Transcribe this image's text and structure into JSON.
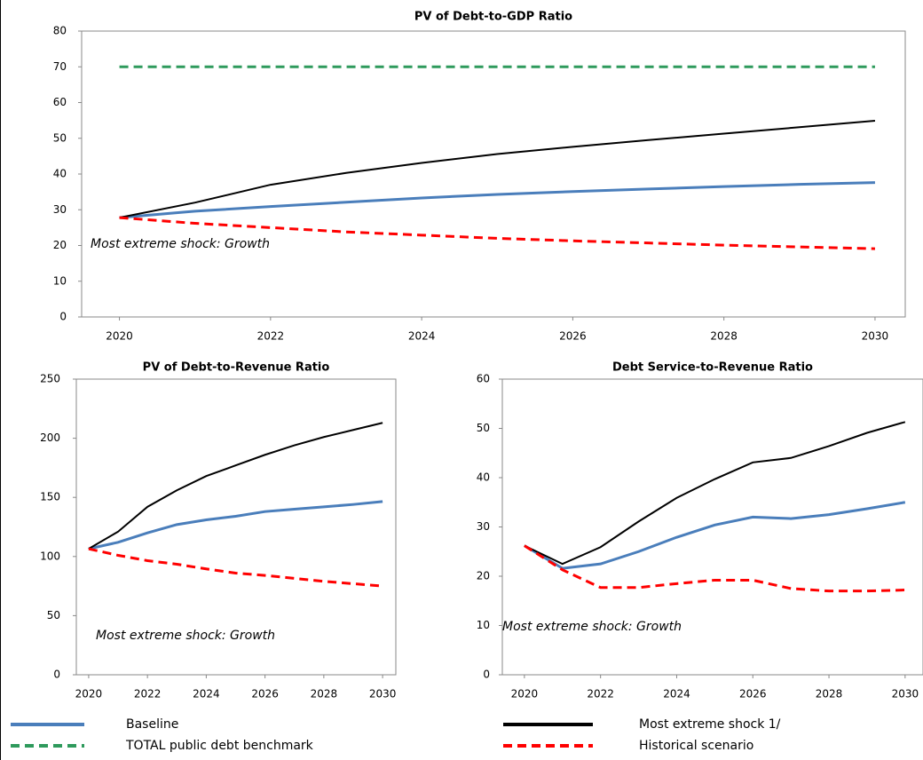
{
  "chart_data": [
    {
      "type": "line",
      "title": "PV of Debt-to-GDP Ratio",
      "annotation": "Most extreme shock: Growth",
      "x": [
        2020,
        2021,
        2022,
        2023,
        2024,
        2025,
        2026,
        2027,
        2028,
        2029,
        2030
      ],
      "xlim": [
        2019.5,
        2030.4
      ],
      "xticks": [
        2020,
        2022,
        2024,
        2026,
        2028,
        2030
      ],
      "ylim": [
        0,
        80
      ],
      "yticks": [
        0,
        10,
        20,
        30,
        40,
        50,
        60,
        70,
        80
      ],
      "series": [
        {
          "name": "Baseline",
          "color": "#4a7ebb",
          "values": [
            27.8,
            29.6,
            30.9,
            32.1,
            33.3,
            34.3,
            35.1,
            35.8,
            36.5,
            37.1,
            37.6
          ]
        },
        {
          "name": "TOTAL public debt benchmark",
          "color": "#2e9a5c",
          "style": "dashed",
          "values": [
            70,
            70,
            70,
            70,
            70,
            70,
            70,
            70,
            70,
            70,
            70
          ]
        },
        {
          "name": "Most extreme shock 1/",
          "color": "#000000",
          "values": [
            27.8,
            32,
            37,
            40.3,
            43.1,
            45.6,
            47.6,
            49.5,
            51.3,
            53.1,
            54.9
          ]
        },
        {
          "name": "Historical scenario",
          "color": "#ff0000",
          "style": "dashed",
          "values": [
            27.8,
            26.2,
            25,
            23.8,
            22.9,
            22,
            21.3,
            20.7,
            20.1,
            19.6,
            19.1
          ]
        }
      ]
    },
    {
      "type": "line",
      "title": "PV of Debt-to-Revenue Ratio",
      "annotation": "Most extreme shock: Growth",
      "x": [
        2020,
        2021,
        2022,
        2023,
        2024,
        2025,
        2026,
        2027,
        2028,
        2029,
        2030
      ],
      "xlim": [
        2019.58,
        2030.45
      ],
      "xticks": [
        2020,
        2022,
        2024,
        2026,
        2028,
        2030
      ],
      "ylim": [
        0,
        250
      ],
      "yticks": [
        0,
        50,
        100,
        150,
        200,
        250
      ],
      "series": [
        {
          "color": "#4a7ebb",
          "values": [
            106.5,
            112,
            120,
            127,
            131,
            134,
            138,
            140,
            142,
            144,
            146.5
          ]
        },
        {
          "color": "#000000",
          "values": [
            106.5,
            121,
            142,
            156,
            168,
            177,
            186,
            194,
            201,
            207,
            213
          ]
        },
        {
          "color": "#ff0000",
          "style": "dashed",
          "values": [
            106.5,
            101,
            96.5,
            93.5,
            89.5,
            86,
            84,
            81.5,
            79,
            77,
            75
          ]
        }
      ]
    },
    {
      "type": "line",
      "title": "Debt Service-to-Revenue Ratio",
      "annotation": "Most extreme shock: Growth",
      "x": [
        2020,
        2021,
        2022,
        2023,
        2024,
        2025,
        2026,
        2027,
        2028,
        2029,
        2030
      ],
      "xlim": [
        2019.42,
        2030.47
      ],
      "xticks": [
        2020,
        2022,
        2024,
        2026,
        2028,
        2030
      ],
      "ylim": [
        0,
        60
      ],
      "yticks": [
        0,
        10,
        20,
        30,
        40,
        50,
        60
      ],
      "series": [
        {
          "color": "#4a7ebb",
          "values": [
            26.2,
            21.6,
            22.5,
            25,
            27.9,
            30.4,
            32,
            31.7,
            32.5,
            33.7,
            35
          ]
        },
        {
          "color": "#000000",
          "values": [
            26.2,
            22.5,
            25.9,
            31.1,
            35.9,
            39.7,
            43.1,
            44,
            46.4,
            49.1,
            51.3
          ]
        },
        {
          "color": "#ff0000",
          "style": "dashed",
          "values": [
            26.2,
            21.3,
            17.7,
            17.7,
            18.5,
            19.2,
            19.2,
            17.5,
            17,
            17,
            17.2
          ]
        }
      ]
    }
  ]
}
